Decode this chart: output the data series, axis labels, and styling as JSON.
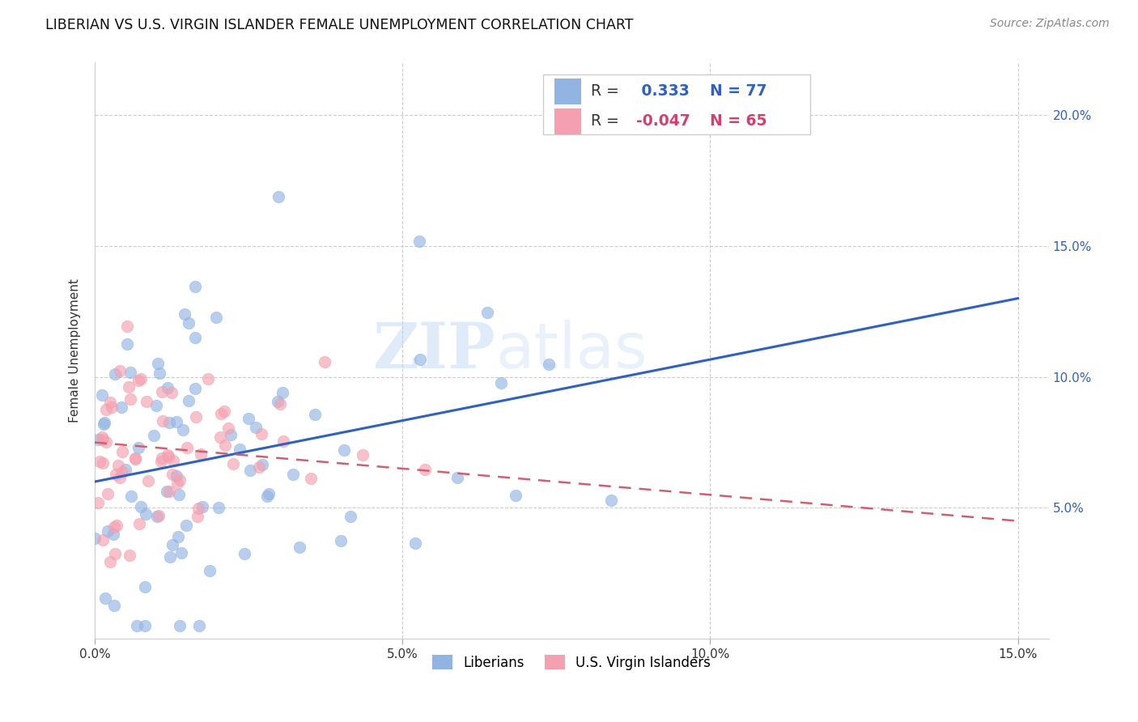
{
  "title": "LIBERIAN VS U.S. VIRGIN ISLANDER FEMALE UNEMPLOYMENT CORRELATION CHART",
  "source": "Source: ZipAtlas.com",
  "ylabel": "Female Unemployment",
  "xlim": [
    0.0,
    0.155
  ],
  "ylim": [
    0.0,
    0.22
  ],
  "xticks": [
    0.0,
    0.05,
    0.1,
    0.15
  ],
  "xticklabels": [
    "0.0%",
    "5.0%",
    "10.0%",
    "15.0%"
  ],
  "yticks_right": [
    0.05,
    0.1,
    0.15,
    0.2
  ],
  "ytick_labels_right": [
    "5.0%",
    "10.0%",
    "15.0%",
    "20.0%"
  ],
  "liberian_color": "#92b4e3",
  "virgin_islander_color": "#f4a0b0",
  "liberian_line_color": "#3060c0",
  "virgin_islander_line_color": "#d06070",
  "liberian_r": 0.333,
  "liberian_n": 77,
  "virgin_islander_r": -0.047,
  "virgin_islander_n": 65,
  "watermark": "ZIPatlas",
  "lib_line_x0": 0.0,
  "lib_line_y0": 0.06,
  "lib_line_x1": 0.15,
  "lib_line_y1": 0.13,
  "vi_line_x0": 0.0,
  "vi_line_y0": 0.075,
  "vi_line_x1": 0.15,
  "vi_line_y1": 0.045
}
